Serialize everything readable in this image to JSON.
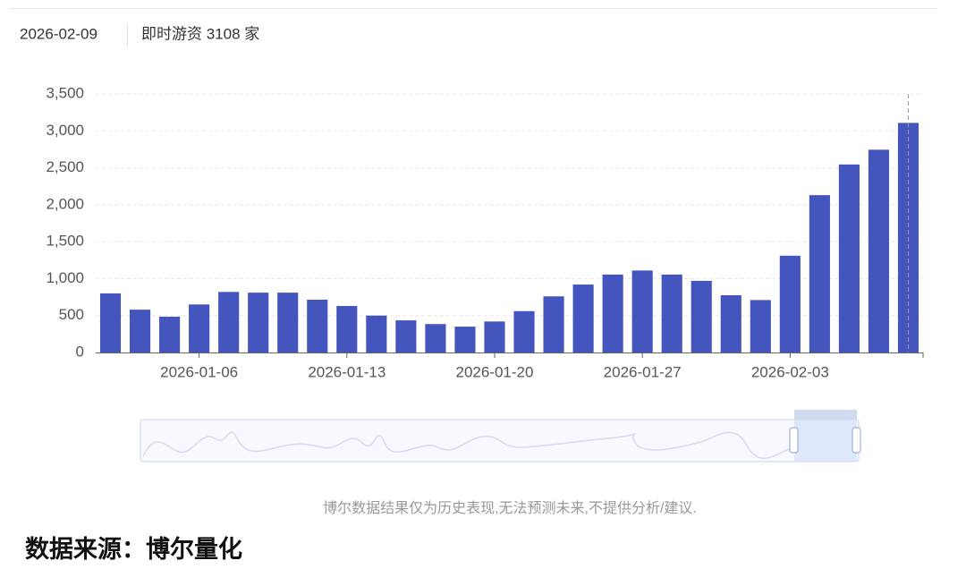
{
  "chart_data": {
    "type": "bar",
    "header_date": "2026-02-09",
    "header_label": "即时游资 3108 家",
    "categories": [
      null,
      null,
      null,
      "2026-01-06",
      null,
      null,
      null,
      null,
      "2026-01-13",
      null,
      null,
      null,
      null,
      "2026-01-20",
      null,
      null,
      null,
      null,
      "2026-01-27",
      null,
      null,
      null,
      null,
      "2026-02-03",
      null,
      null,
      null,
      null
    ],
    "values": [
      800,
      580,
      485,
      650,
      820,
      810,
      810,
      715,
      630,
      500,
      435,
      385,
      350,
      420,
      560,
      760,
      920,
      1055,
      1110,
      1055,
      970,
      775,
      710,
      1310,
      2130,
      2545,
      2745,
      3108
    ],
    "color": "#4455bd",
    "ylim": [
      0,
      3500
    ],
    "yticks": [
      0,
      500,
      {
        "value": 1000,
        "label": "1,000"
      },
      {
        "value": 1500,
        "label": "1,500"
      },
      {
        "value": 2000,
        "label": "2,000"
      },
      {
        "value": 2500,
        "label": "2,500"
      },
      {
        "value": 3000,
        "label": "3,000"
      },
      {
        "value": 3500,
        "label": "3,500"
      }
    ],
    "grid": true,
    "disclaimer": "博尔数据结果仅为历史表现,无法预测未来,不提供分析/建议.",
    "source": "数据来源：博尔量化"
  }
}
